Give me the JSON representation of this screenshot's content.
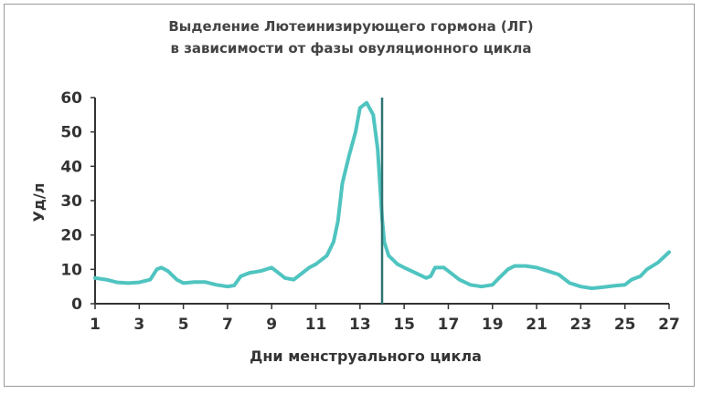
{
  "chart_data": {
    "type": "line",
    "title": [
      "Выделение Лютеинизирующего гормона (ЛГ)",
      "в зависимости от фазы овуляционного цикла"
    ],
    "xlabel": "Дни менструального цикла",
    "ylabel": "Уд/л",
    "xlim": [
      1,
      27
    ],
    "ylim": [
      0,
      60
    ],
    "xticks": [
      1,
      3,
      5,
      7,
      9,
      11,
      13,
      15,
      17,
      19,
      21,
      23,
      25,
      27
    ],
    "yticks": [
      0,
      10,
      20,
      30,
      40,
      50,
      60
    ],
    "grid": false,
    "vertical_marker_x": 14,
    "colors": {
      "line": "#4fc4c0",
      "marker": "#2e7472",
      "axis": "#333333"
    },
    "series": [
      {
        "x": [
          1,
          1.5,
          2,
          2.5,
          3,
          3.5,
          3.8,
          4,
          4.3,
          4.7,
          5,
          5.5,
          6,
          6.5,
          7,
          7.3,
          7.6,
          8,
          8.5,
          9,
          9.3,
          9.6,
          10,
          10.3,
          10.7,
          11,
          11.5,
          11.8,
          12,
          12.2,
          12.5,
          12.8,
          13,
          13.3,
          13.6,
          13.8,
          14,
          14.1,
          14.3,
          14.7,
          15,
          15.5,
          16,
          16.2,
          16.4,
          16.8,
          17,
          17.5,
          18,
          18.5,
          19,
          19.3,
          19.7,
          20,
          20.5,
          21,
          21.5,
          22,
          22.5,
          23,
          23.5,
          24,
          24.5,
          25,
          25.3,
          25.7,
          26,
          26.5,
          27
        ],
        "y": [
          7.5,
          7,
          6.2,
          6,
          6.2,
          7,
          10,
          10.5,
          9.5,
          7,
          6,
          6.3,
          6.3,
          5.5,
          5,
          5.3,
          8,
          9,
          9.5,
          10.5,
          9,
          7.5,
          7,
          8.5,
          10.5,
          11.5,
          14,
          18,
          24,
          35,
          43,
          50,
          57,
          58.5,
          55,
          45,
          25,
          18,
          14,
          11.5,
          10.5,
          9,
          7.5,
          8,
          10.5,
          10.5,
          9.5,
          7,
          5.5,
          5,
          5.5,
          7.5,
          10,
          11,
          11,
          10.5,
          9.5,
          8.5,
          6,
          5,
          4.5,
          4.8,
          5.2,
          5.5,
          7,
          8,
          10,
          12,
          15
        ]
      }
    ]
  }
}
